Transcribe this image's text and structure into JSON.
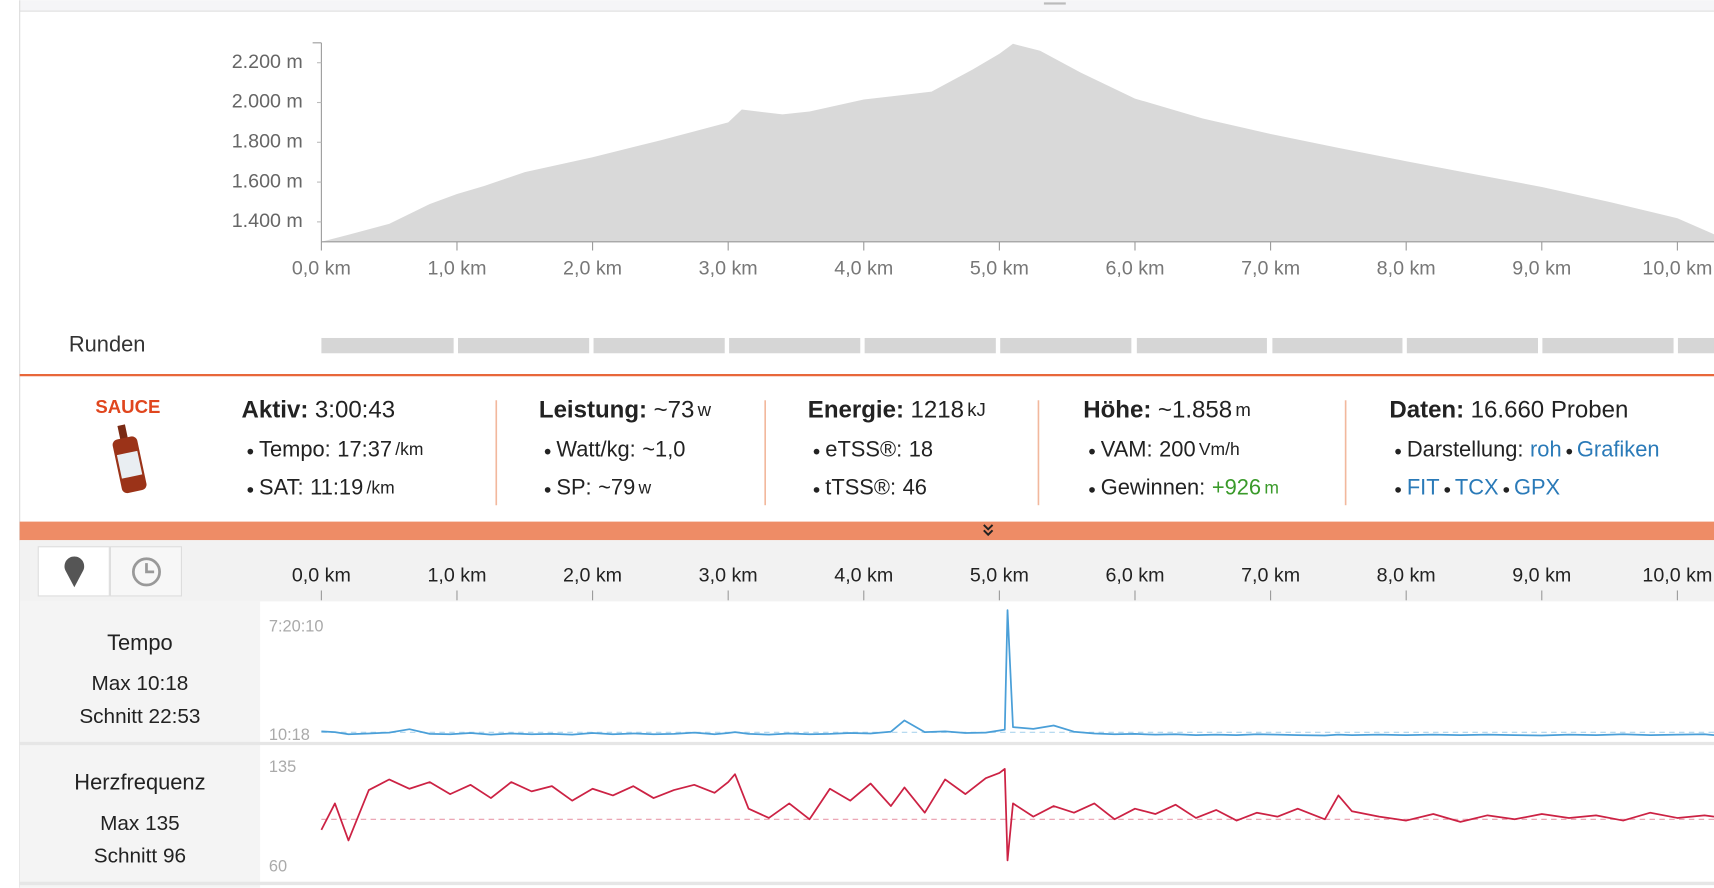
{
  "logo": "SAUCE",
  "laps_label": "Runden",
  "stats": [
    {
      "label": "Aktiv:",
      "value": "3:00:43",
      "items": [
        {
          "label": "Tempo:",
          "value": "17:37",
          "unit": "/km"
        },
        {
          "label": "SAT:",
          "value": "11:19",
          "unit": "/km"
        }
      ]
    },
    {
      "label": "Leistung:",
      "value": "~73",
      "unit": "w",
      "items": [
        {
          "label": "Watt/kg:",
          "value": "~1,0"
        },
        {
          "label": "SP:",
          "value": "~79",
          "unit": "w"
        }
      ]
    },
    {
      "label": "Energie:",
      "value": "1218",
      "unit": "kJ",
      "items": [
        {
          "label": "eTSS®:",
          "value": "18"
        },
        {
          "label": "tTSS®:",
          "value": "46"
        }
      ]
    },
    {
      "label": "Höhe:",
      "value": "~1.858",
      "unit": "m",
      "items": [
        {
          "label": "VAM:",
          "value": "200",
          "unit": "Vm/h"
        },
        {
          "label": "Gewinnen:",
          "value": "+926",
          "unit": "m",
          "highlight": "#3a9a2a"
        }
      ]
    },
    {
      "label": "Daten:",
      "value": "16.660 Proben",
      "items": [
        {
          "label": "Darstellung:",
          "links": [
            "roh",
            "Grafiken"
          ]
        },
        {
          "links": [
            "FIT",
            "TCX",
            "GPX"
          ]
        }
      ]
    }
  ],
  "chart_data": [
    {
      "type": "area",
      "color": "#d9d9d9",
      "x": [
        0,
        0.2,
        0.5,
        0.8,
        1.0,
        1.2,
        1.5,
        2.0,
        2.5,
        3.0,
        3.1,
        3.4,
        3.6,
        4.0,
        4.5,
        4.8,
        5.0,
        5.1,
        5.3,
        5.6,
        6.0,
        6.5,
        7.0,
        7.5,
        8.0,
        8.5,
        9.0,
        9.5,
        10.0,
        10.27
      ],
      "values": [
        1300,
        1335,
        1390,
        1490,
        1540,
        1580,
        1650,
        1725,
        1810,
        1900,
        1965,
        1940,
        1955,
        2015,
        2055,
        2165,
        2245,
        2295,
        2260,
        2150,
        2020,
        1920,
        1842,
        1772,
        1705,
        1640,
        1575,
        1500,
        1418,
        1338
      ],
      "xlim": [
        0,
        10.27
      ],
      "ylim": [
        1300,
        2300
      ],
      "xticks": [
        {
          "value": 0,
          "label": "0,0 km"
        },
        {
          "value": 1,
          "label": "1,0 km"
        },
        {
          "value": 2,
          "label": "2,0 km"
        },
        {
          "value": 3,
          "label": "3,0 km"
        },
        {
          "value": 4,
          "label": "4,0 km"
        },
        {
          "value": 5,
          "label": "5,0 km"
        },
        {
          "value": 6,
          "label": "6,0 km"
        },
        {
          "value": 7,
          "label": "7,0 km"
        },
        {
          "value": 8,
          "label": "8,0 km"
        },
        {
          "value": 9,
          "label": "9,0 km"
        },
        {
          "value": 10,
          "label": "10,0 km"
        }
      ],
      "yticks": [
        {
          "value": 1400,
          "label": "1.400 m"
        },
        {
          "value": 1600,
          "label": "1.600 m"
        },
        {
          "value": 1800,
          "label": "1.800 m"
        },
        {
          "value": 2000,
          "label": "2.000 m"
        },
        {
          "value": 2200,
          "label": "2.200 m"
        }
      ]
    },
    {
      "type": "line",
      "title": "Tempo",
      "max_label": "Max 10:18",
      "average_label": "Schnitt 22:53",
      "average": 1373,
      "color": "#4a9fd8",
      "x": [
        0,
        0.1,
        0.2,
        0.35,
        0.5,
        0.65,
        0.8,
        0.95,
        1.1,
        1.25,
        1.4,
        1.55,
        1.7,
        1.85,
        2.0,
        2.15,
        2.3,
        2.45,
        2.6,
        2.75,
        2.9,
        3.0,
        3.05,
        3.15,
        3.3,
        3.45,
        3.6,
        3.75,
        3.9,
        4.05,
        4.2,
        4.3,
        4.45,
        4.6,
        4.75,
        4.9,
        5.0,
        5.04,
        5.06,
        5.1,
        5.25,
        5.4,
        5.55,
        5.7,
        5.85,
        6.0,
        6.15,
        6.3,
        6.45,
        6.6,
        6.75,
        6.9,
        7.05,
        7.2,
        7.4,
        7.5,
        7.6,
        7.8,
        8.0,
        8.2,
        8.4,
        8.6,
        8.8,
        9.0,
        9.2,
        9.4,
        9.6,
        9.8,
        10.0,
        10.2,
        10.27
      ],
      "values": [
        1600,
        1400,
        900,
        1100,
        1300,
        2100,
        1000,
        900,
        1200,
        800,
        1100,
        900,
        1000,
        800,
        1200,
        900,
        1100,
        900,
        1000,
        1300,
        900,
        1200,
        1400,
        1000,
        800,
        1100,
        900,
        1000,
        1200,
        1100,
        1500,
        4200,
        1400,
        1600,
        1200,
        1300,
        1800,
        2000,
        30500,
        2600,
        2200,
        3000,
        1500,
        1100,
        900,
        1000,
        800,
        900,
        700,
        800,
        700,
        900,
        800,
        700,
        600,
        800,
        700,
        800,
        700,
        800,
        700,
        800,
        700,
        600,
        800,
        700,
        900,
        700,
        800,
        900,
        700
      ],
      "xlim": [
        0,
        10.27
      ],
      "ylim": [
        0,
        30500
      ],
      "xticks": [
        {
          "value": 0,
          "label": "0,0 km"
        },
        {
          "value": 1,
          "label": "1,0 km"
        },
        {
          "value": 2,
          "label": "2,0 km"
        },
        {
          "value": 3,
          "label": "3,0 km"
        },
        {
          "value": 4,
          "label": "4,0 km"
        },
        {
          "value": 5,
          "label": "5,0 km"
        },
        {
          "value": 6,
          "label": "6,0 km"
        },
        {
          "value": 7,
          "label": "7,0 km"
        },
        {
          "value": 8,
          "label": "8,0 km"
        },
        {
          "value": 9,
          "label": "9,0 km"
        },
        {
          "value": 10,
          "label": "10,0 km"
        }
      ],
      "yticks": [
        {
          "value": 26410,
          "label": "7:20:10"
        },
        {
          "value": 618,
          "label": "10:18"
        }
      ]
    },
    {
      "type": "line",
      "title": "Herzfrequenz",
      "max_label": "Max 135",
      "average_label": "Schnitt 96",
      "average": 96,
      "color": "#cc2244",
      "x": [
        0,
        0.1,
        0.2,
        0.35,
        0.5,
        0.65,
        0.8,
        0.95,
        1.1,
        1.25,
        1.4,
        1.55,
        1.7,
        1.85,
        2.0,
        2.15,
        2.3,
        2.45,
        2.6,
        2.75,
        2.9,
        3.0,
        3.05,
        3.15,
        3.3,
        3.45,
        3.6,
        3.75,
        3.9,
        4.05,
        4.2,
        4.3,
        4.45,
        4.6,
        4.75,
        4.9,
        5.0,
        5.04,
        5.06,
        5.1,
        5.25,
        5.4,
        5.55,
        5.7,
        5.85,
        6.0,
        6.15,
        6.3,
        6.45,
        6.6,
        6.75,
        6.9,
        7.05,
        7.2,
        7.4,
        7.5,
        7.6,
        7.8,
        8.0,
        8.2,
        8.4,
        8.6,
        8.8,
        9.0,
        9.2,
        9.4,
        9.6,
        9.8,
        10.0,
        10.2,
        10.27
      ],
      "values": [
        88,
        108,
        80,
        118,
        126,
        119,
        124,
        115,
        122,
        112,
        124,
        117,
        121,
        110,
        119,
        114,
        121,
        112,
        118,
        122,
        116,
        124,
        130,
        104,
        97,
        108,
        96,
        119,
        110,
        123,
        106,
        120,
        101,
        126,
        115,
        127,
        131,
        134,
        65,
        108,
        98,
        106,
        101,
        108,
        96,
        104,
        100,
        107,
        97,
        103,
        95,
        101,
        98,
        104,
        96,
        114,
        102,
        98,
        95,
        100,
        94,
        99,
        96,
        100,
        97,
        99,
        95,
        101,
        97,
        99,
        98
      ],
      "xlim": [
        0,
        10.27
      ],
      "ylim": [
        60,
        135
      ],
      "yticks": [
        135,
        60
      ]
    }
  ]
}
